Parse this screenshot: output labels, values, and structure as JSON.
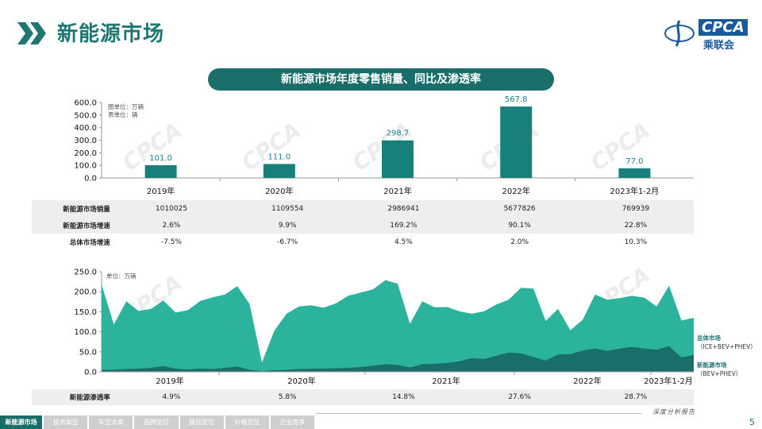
{
  "header": {
    "title": "新能源市场"
  },
  "logo": {
    "brand": "CPCA",
    "sub": "乘联会",
    "caption": "深度分析报告"
  },
  "banner": {
    "text": "新能源市场年度零售销量、同比及渗透率"
  },
  "colors": {
    "primary": "#1a6e6a",
    "bar": "#17807b",
    "total_area": "#2bb39b",
    "nev_area": "#1a6e6a",
    "label": "#1a7f8f"
  },
  "chart_data": [
    {
      "type": "bar",
      "unit_notes": [
        "图单位：万辆",
        "表单位：辆"
      ],
      "categories": [
        "2019年",
        "2020年",
        "2021年",
        "2022年",
        "2023年1-2月"
      ],
      "values": [
        101.0,
        111.0,
        298.7,
        567.8,
        77.0
      ],
      "value_labels": [
        "101.0",
        "111.0",
        "298.7",
        "567.8",
        "77.0"
      ],
      "y_ticks": [
        "600.0",
        "500.0",
        "400.0",
        "300.0",
        "200.0",
        "100.0",
        "0.0"
      ],
      "ylim": [
        0,
        600
      ],
      "table": {
        "rows": [
          {
            "label": "新能源市场销量",
            "values": [
              "1010025",
              "1109554",
              "2986941",
              "5677826",
              "769939"
            ]
          },
          {
            "label": "新能源市场增速",
            "values": [
              "2.6%",
              "9.9%",
              "169.2%",
              "90.1%",
              "22.8%"
            ]
          },
          {
            "label": "总体市场增速",
            "values": [
              "-7.5%",
              "-6.7%",
              "4.5%",
              "2.0%",
              "10.3%"
            ]
          }
        ]
      }
    },
    {
      "type": "area",
      "unit_note": "单位：万辆",
      "y_ticks": [
        "250.0",
        "200.0",
        "150.0",
        "100.0",
        "50.0",
        "0.0"
      ],
      "ylim": [
        0,
        250
      ],
      "x_labels": [
        "2019年",
        "2020年",
        "2021年",
        "2022年",
        "2023年1-2月"
      ],
      "series": [
        {
          "name": "总体市场",
          "values": [
            218,
            118,
            176,
            152,
            157,
            178,
            148,
            154,
            177,
            186,
            193,
            214,
            169,
            23,
            103,
            145,
            163,
            166,
            160,
            171,
            190,
            198,
            206,
            229,
            220,
            120,
            176,
            161,
            162,
            151,
            145,
            151,
            168,
            180,
            210,
            208,
            127,
            157,
            104,
            130,
            193,
            180,
            184,
            190,
            185,
            163,
            215,
            128,
            135
          ]
        },
        {
          "name": "新能源市场",
          "values": [
            5,
            5,
            7,
            8,
            10,
            14,
            8,
            6,
            8,
            7,
            10,
            13,
            5,
            2,
            4,
            5,
            7,
            8,
            8,
            9,
            10,
            12,
            15,
            19,
            17,
            11,
            19,
            20,
            22,
            26,
            34,
            32,
            40,
            48,
            46,
            37,
            28,
            43,
            44,
            53,
            58,
            52,
            58,
            62,
            58,
            55,
            64,
            36,
            42
          ]
        }
      ],
      "legend": [
        {
          "title": "总体市场",
          "sub": "（ICE+BEV+PHEV）"
        },
        {
          "title": "新能源市场",
          "sub": "（BEV+PHEV）"
        }
      ],
      "penetration": {
        "label": "新能源渗透率",
        "values": [
          "4.9%",
          "5.8%",
          "14.8%",
          "27.6%",
          "28.7%"
        ]
      }
    }
  ],
  "footer_nav": [
    "新能源市场",
    "技术类型",
    "车型大类",
    "品牌定位",
    "级别定位",
    "价格定位",
    "企业竞争"
  ],
  "page_number": "5"
}
